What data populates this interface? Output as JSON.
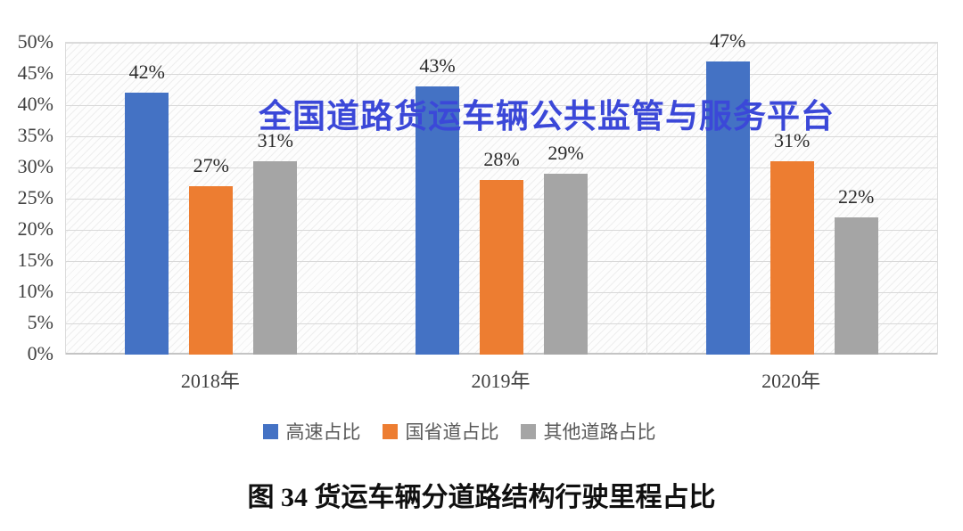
{
  "watermark": {
    "text": "全国道路货运车辆公共监管与服务平台",
    "color": "#3B48D8"
  },
  "caption": {
    "text": "图 34 货运车辆分道路结构行驶里程占比"
  },
  "chart_data": {
    "type": "bar",
    "title": "",
    "xlabel": "",
    "ylabel": "",
    "categories": [
      "2018年",
      "2019年",
      "2020年"
    ],
    "series": [
      {
        "name": "高速占比",
        "color": "#4472C4",
        "values": [
          42,
          43,
          47
        ]
      },
      {
        "name": "国省道占比",
        "color": "#ED7D31",
        "values": [
          27,
          28,
          31
        ]
      },
      {
        "name": "其他道路占比",
        "color": "#A5A5A5",
        "values": [
          31,
          29,
          22
        ]
      }
    ],
    "ylim": [
      0,
      50
    ],
    "ytick_step": 5,
    "yticks": [
      "0%",
      "5%",
      "10%",
      "15%",
      "20%",
      "25%",
      "30%",
      "35%",
      "40%",
      "45%",
      "50%"
    ],
    "value_labels": true,
    "value_suffix": "%",
    "grid": true,
    "legend_position": "bottom",
    "colors": {
      "gridline": "#D9D9D9",
      "axis_line": "#C4C4C4",
      "tick_text": "#404040",
      "legend_text": "#595959"
    }
  }
}
